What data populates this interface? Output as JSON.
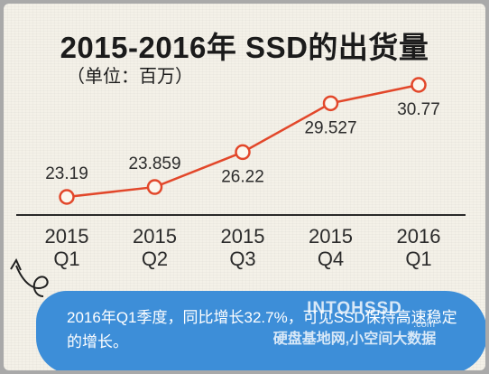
{
  "page": {
    "title": "2015-2016年 SSD的出货量",
    "subtitle": "（单位：百万）",
    "note": "2016年Q1季度，同比增长32.7%，可见SSD保持高速稳定的增长。"
  },
  "watermark": {
    "logo": "INTOHSSD",
    "domain": ".com",
    "text": "硬盘基地网,小空间大数据"
  },
  "colors": {
    "line": "#e2472a",
    "axis": "#2a2a2a",
    "label": "#2b2b2b",
    "note_bg": "#3d8ed8"
  },
  "chart_data": {
    "type": "line",
    "title": "2015-2016年 SSD的出货量",
    "subtitle": "（单位：百万）",
    "categories": [
      {
        "year": "2015",
        "quarter": "Q1"
      },
      {
        "year": "2015",
        "quarter": "Q2"
      },
      {
        "year": "2015",
        "quarter": "Q3"
      },
      {
        "year": "2015",
        "quarter": "Q4"
      },
      {
        "year": "2016",
        "quarter": "Q1"
      }
    ],
    "series": [
      {
        "values": [
          23.19,
          23.859,
          26.22,
          29.527,
          30.77
        ],
        "value_labels": [
          "23.19",
          "23.859",
          "26.22",
          "29.527",
          "30.77"
        ],
        "label_position": [
          "above",
          "above",
          "below",
          "below",
          "below"
        ]
      }
    ],
    "xlabel": "",
    "ylabel": "",
    "ylim": [
      20,
      32
    ],
    "grid": false,
    "legend": "none"
  }
}
